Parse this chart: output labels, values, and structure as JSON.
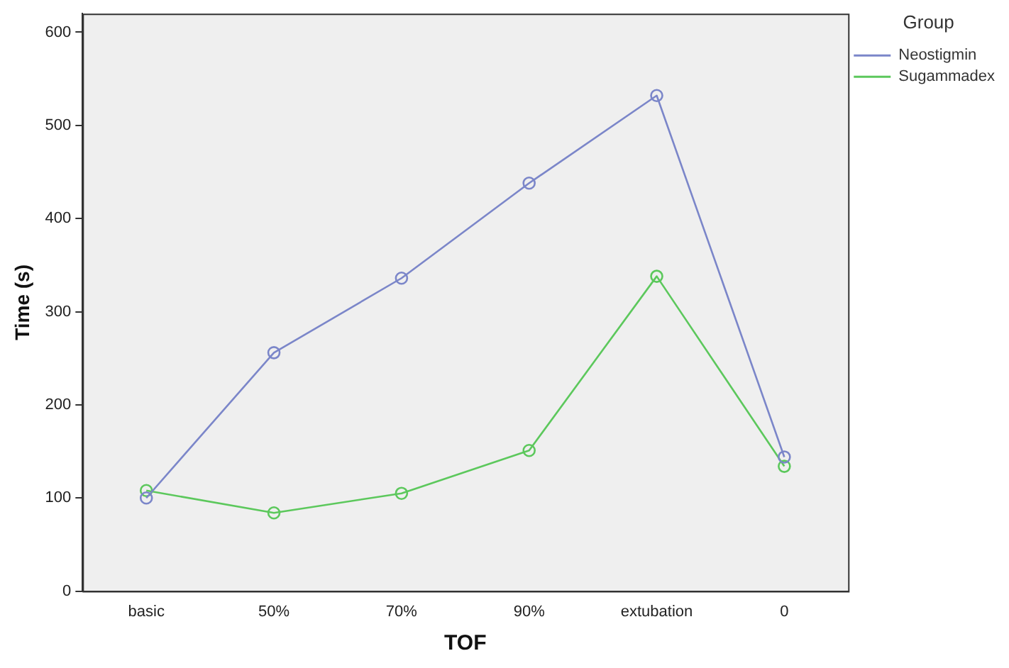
{
  "chart_data": {
    "type": "line",
    "xlabel": "TOF",
    "ylabel": "Time (s)",
    "legend_title": "Group",
    "categories": [
      "basic",
      "50%",
      "70%",
      "90%",
      "extubation",
      "0"
    ],
    "series": [
      {
        "name": "Neostigmin",
        "color": "#7b86c9",
        "values": [
          100,
          256,
          336,
          438,
          532,
          144
        ]
      },
      {
        "name": "Sugammadex",
        "color": "#5cc85c",
        "values": [
          108,
          84,
          105,
          151,
          338,
          134
        ]
      }
    ],
    "ylim": [
      0,
      620
    ],
    "yticks": [
      0,
      100,
      200,
      300,
      400,
      500,
      600
    ],
    "grid": false,
    "legend": "top right",
    "marker": "circle",
    "line_style": "solid"
  }
}
